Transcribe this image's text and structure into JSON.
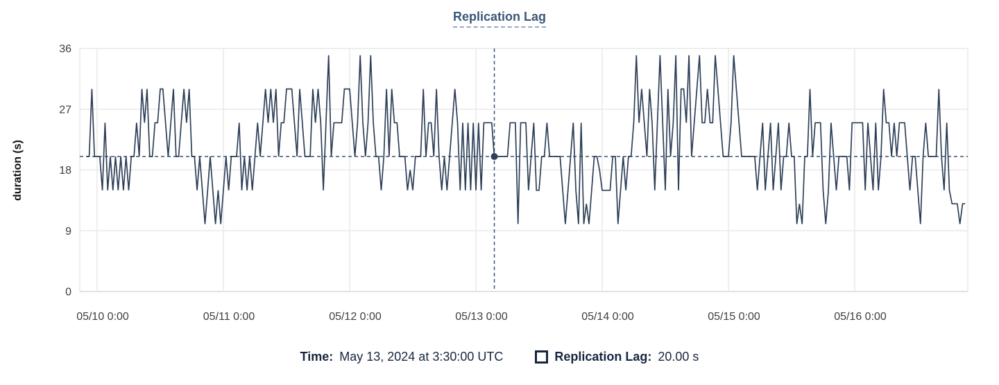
{
  "title": {
    "text": "Replication Lag"
  },
  "y_axis": {
    "title": "duration (s)",
    "ticks": [
      36,
      27,
      18,
      9,
      0
    ]
  },
  "x_axis": {
    "ticks": [
      "05/10 0:00",
      "05/11 0:00",
      "05/12 0:00",
      "05/13 0:00",
      "05/14 0:00",
      "05/15 0:00",
      "05/16 0:00"
    ]
  },
  "footer": {
    "time_label": "Time:",
    "time_value": "May 13, 2024 at 3:30:00 UTC",
    "series_label": "Replication Lag:",
    "series_value": "20.00 s"
  },
  "colors": {
    "line": "#2d3f58",
    "crosshair": "#3a5475",
    "title_text": "#3a5878",
    "title_underline": "#93a9c2",
    "footer_text": "#17263f",
    "grid": "#e9e9e9",
    "baseline_grid": "#d7d7d7",
    "axis_text": "#3e3e3e"
  },
  "chart_data": {
    "type": "line",
    "title": "Replication Lag",
    "ylabel": "duration (s)",
    "ylim": [
      0,
      36
    ],
    "y_ticks": [
      0,
      9,
      18,
      27,
      36
    ],
    "x_tick_labels": [
      "05/10 0:00",
      "05/11 0:00",
      "05/12 0:00",
      "05/13 0:00",
      "05/14 0:00",
      "05/15 0:00",
      "05/16 0:00"
    ],
    "x_start_label": "05/09 22:00",
    "x_interval_minutes": 30,
    "grid": true,
    "legend_position": "bottom",
    "crosshair": {
      "time": "May 13, 2024 at 3:30:00 UTC",
      "value": 20.0,
      "index": 155
    },
    "series": [
      {
        "name": "Replication Lag",
        "unit": "s",
        "values": [
          20,
          20,
          30,
          20,
          20,
          20,
          15,
          25,
          15,
          20,
          15,
          20,
          15,
          20,
          15,
          20,
          15,
          20,
          20,
          25,
          20,
          30,
          25,
          30,
          20,
          20,
          25,
          25,
          30,
          30,
          25,
          20,
          25,
          30,
          20,
          20,
          25,
          30,
          25,
          30,
          20,
          20,
          15,
          20,
          15,
          10,
          15,
          20,
          15,
          10,
          15,
          10,
          15,
          20,
          15,
          20,
          20,
          20,
          25,
          15,
          20,
          15,
          20,
          15,
          20,
          25,
          20,
          25,
          30,
          25,
          30,
          25,
          30,
          20,
          25,
          25,
          30,
          30,
          30,
          25,
          20,
          30,
          25,
          20,
          20,
          20,
          30,
          25,
          30,
          25,
          15,
          25,
          35,
          20,
          25,
          25,
          25,
          25,
          30,
          30,
          30,
          25,
          20,
          25,
          35,
          25,
          20,
          25,
          35,
          25,
          20,
          20,
          15,
          20,
          30,
          20,
          30,
          25,
          25,
          20,
          20,
          20,
          15,
          18,
          15,
          20,
          20,
          20,
          30,
          20,
          25,
          25,
          20,
          30,
          20,
          15,
          20,
          15,
          20,
          25,
          30,
          25,
          15,
          25,
          15,
          25,
          15,
          25,
          15,
          25,
          15,
          25,
          25,
          25,
          25,
          20,
          20,
          20,
          20,
          20,
          20,
          25,
          25,
          25,
          10,
          25,
          25,
          25,
          15,
          20,
          25,
          15,
          15,
          20,
          20,
          25,
          20,
          20,
          20,
          20,
          20,
          15,
          10,
          15,
          20,
          25,
          15,
          10,
          25,
          10,
          13,
          10,
          15,
          20,
          20,
          18,
          15,
          15,
          15,
          15,
          20,
          20,
          10,
          15,
          20,
          15,
          20,
          20,
          25,
          35,
          25,
          30,
          25,
          20,
          30,
          25,
          15,
          25,
          35,
          25,
          15,
          30,
          20,
          25,
          35,
          15,
          30,
          30,
          25,
          35,
          20,
          25,
          30,
          35,
          25,
          25,
          30,
          25,
          25,
          35,
          30,
          25,
          20,
          20,
          20,
          25,
          35,
          30,
          25,
          20,
          20,
          20,
          20,
          20,
          20,
          15,
          20,
          25,
          15,
          20,
          25,
          15,
          20,
          25,
          15,
          20,
          20,
          25,
          20,
          20,
          10,
          13,
          10,
          20,
          20,
          30,
          20,
          25,
          25,
          25,
          15,
          10,
          15,
          25,
          20,
          15,
          20,
          20,
          20,
          20,
          15,
          25,
          25,
          25,
          25,
          25,
          15,
          25,
          20,
          15,
          25,
          15,
          20,
          30,
          25,
          25,
          20,
          25,
          20,
          25,
          25,
          25,
          20,
          15,
          20,
          20,
          15,
          10,
          20,
          25,
          20,
          20,
          20,
          20,
          30,
          20,
          15,
          25,
          15,
          13,
          13,
          13,
          10,
          13,
          13
        ]
      }
    ]
  }
}
